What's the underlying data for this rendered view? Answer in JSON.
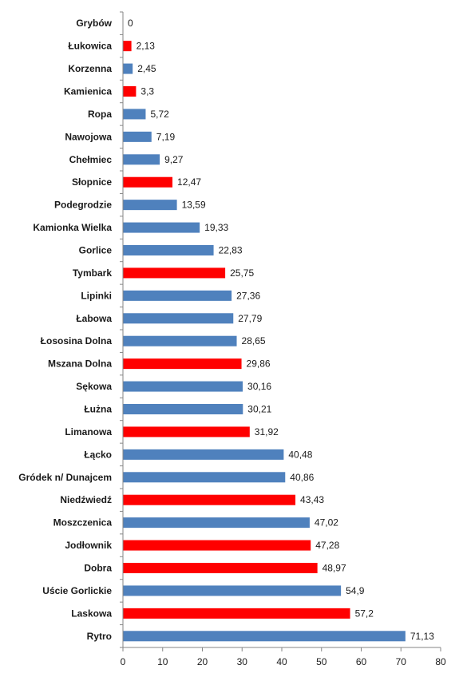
{
  "chart_data": {
    "type": "bar",
    "orientation": "horizontal",
    "title": "",
    "xlabel": "",
    "ylabel": "",
    "xlim": [
      0,
      80
    ],
    "x_ticks": [
      0,
      10,
      20,
      30,
      40,
      50,
      60,
      70,
      80
    ],
    "grid": false,
    "legend": "none",
    "colors": {
      "blue": "#4f81bd",
      "red": "#ff0000"
    },
    "bars": [
      {
        "category": "Grybów",
        "value": 0,
        "label": "0",
        "color": "blue"
      },
      {
        "category": "Łukowica",
        "value": 2.13,
        "label": "2,13",
        "color": "red"
      },
      {
        "category": "Korzenna",
        "value": 2.45,
        "label": "2,45",
        "color": "blue"
      },
      {
        "category": "Kamienica",
        "value": 3.3,
        "label": "3,3",
        "color": "red"
      },
      {
        "category": "Ropa",
        "value": 5.72,
        "label": "5,72",
        "color": "blue"
      },
      {
        "category": "Nawojowa",
        "value": 7.19,
        "label": "7,19",
        "color": "blue"
      },
      {
        "category": "Chełmiec",
        "value": 9.27,
        "label": "9,27",
        "color": "blue"
      },
      {
        "category": "Słopnice",
        "value": 12.47,
        "label": "12,47",
        "color": "red"
      },
      {
        "category": "Podegrodzie",
        "value": 13.59,
        "label": "13,59",
        "color": "blue"
      },
      {
        "category": "Kamionka Wielka",
        "value": 19.33,
        "label": "19,33",
        "color": "blue"
      },
      {
        "category": "Gorlice",
        "value": 22.83,
        "label": "22,83",
        "color": "blue"
      },
      {
        "category": "Tymbark",
        "value": 25.75,
        "label": "25,75",
        "color": "red"
      },
      {
        "category": "Lipinki",
        "value": 27.36,
        "label": "27,36",
        "color": "blue"
      },
      {
        "category": "Łabowa",
        "value": 27.79,
        "label": "27,79",
        "color": "blue"
      },
      {
        "category": "Łososina Dolna",
        "value": 28.65,
        "label": "28,65",
        "color": "blue"
      },
      {
        "category": "Mszana Dolna",
        "value": 29.86,
        "label": "29,86",
        "color": "red"
      },
      {
        "category": "Sękowa",
        "value": 30.16,
        "label": "30,16",
        "color": "blue"
      },
      {
        "category": "Łużna",
        "value": 30.21,
        "label": "30,21",
        "color": "blue"
      },
      {
        "category": "Limanowa",
        "value": 31.92,
        "label": "31,92",
        "color": "red"
      },
      {
        "category": "Łącko",
        "value": 40.48,
        "label": "40,48",
        "color": "blue"
      },
      {
        "category": "Gródek n/ Dunajcem",
        "value": 40.86,
        "label": "40,86",
        "color": "blue"
      },
      {
        "category": "Niedźwiedź",
        "value": 43.43,
        "label": "43,43",
        "color": "red"
      },
      {
        "category": "Moszczenica",
        "value": 47.02,
        "label": "47,02",
        "color": "blue"
      },
      {
        "category": "Jodłownik",
        "value": 47.28,
        "label": "47,28",
        "color": "red"
      },
      {
        "category": "Dobra",
        "value": 48.97,
        "label": "48,97",
        "color": "red"
      },
      {
        "category": "Uście Gorlickie",
        "value": 54.9,
        "label": "54,9",
        "color": "blue"
      },
      {
        "category": "Laskowa",
        "value": 57.2,
        "label": "57,2",
        "color": "red"
      },
      {
        "category": "Rytro",
        "value": 71.13,
        "label": "71,13",
        "color": "blue"
      }
    ]
  }
}
